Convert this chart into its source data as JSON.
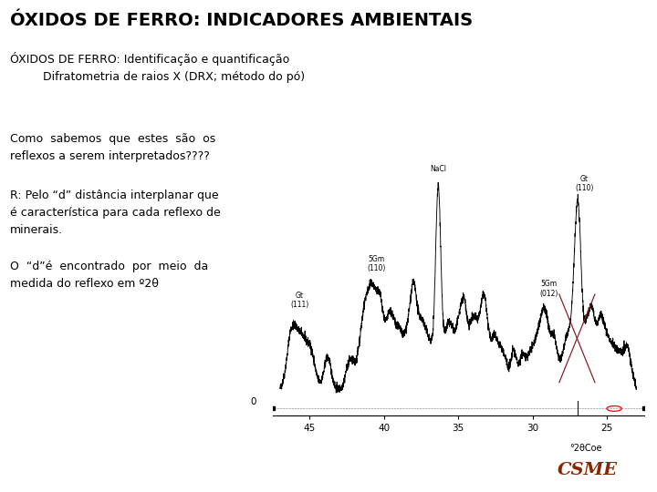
{
  "title": "ÓXIDOS DE FERRO: INDICADORES AMBIENTAIS",
  "subtitle1": "ÓXIDOS DE FERRO: Identificação e quantificação",
  "subtitle2": "Difratometria de raios X (DRX; método do pó)",
  "text1": "Como  sabemos  que  estes  são  os\nreflexos a serem interpretados????",
  "text2": "R: Pelo “d” distância interplanar que\né característica para cada reflexo de\nminerais.",
  "text3": "O  “d”é  encontrado  por  meio  da\nmedida do reflexo em º2θ",
  "xlabel": "°2θCoe",
  "x_ticks": [
    45,
    40,
    35,
    30,
    25
  ],
  "background_color": "#ffffff",
  "line_color": "#000000",
  "red_line_color": "#8B2020",
  "csme_color": "#8B2500",
  "title_fontsize": 14,
  "subtitle_fontsize": 9,
  "body_fontsize": 9
}
